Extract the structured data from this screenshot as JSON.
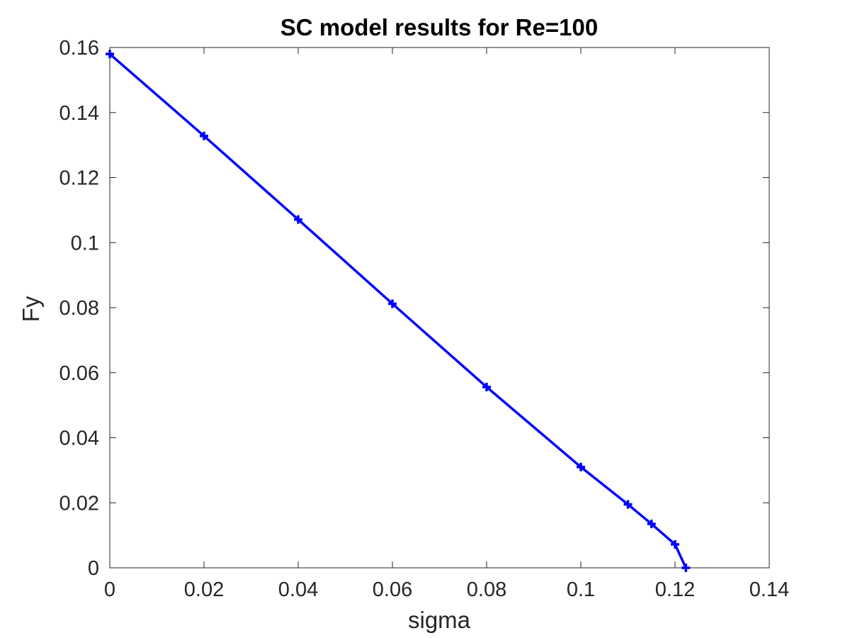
{
  "chart_data": {
    "type": "line",
    "title": "SC model results for Re=100",
    "xlabel": "sigma",
    "ylabel": "Fy",
    "xlim": [
      0,
      0.14
    ],
    "ylim": [
      0,
      0.16
    ],
    "x_ticks": [
      "0",
      "0.02",
      "0.04",
      "0.06",
      "0.08",
      "0.1",
      "0.12",
      "0.14"
    ],
    "y_ticks": [
      "0",
      "0.02",
      "0.04",
      "0.06",
      "0.08",
      "0.1",
      "0.12",
      "0.14",
      "0.16"
    ],
    "grid": false,
    "box": true,
    "series": [
      {
        "color": "#0000ff",
        "marker": "plus",
        "x": [
          0,
          0.02,
          0.04,
          0.06,
          0.08,
          0.1,
          0.11,
          0.115,
          0.12,
          0.1223
        ],
        "y": [
          0.158,
          0.1328,
          0.1071,
          0.0812,
          0.0556,
          0.031,
          0.0195,
          0.0135,
          0.0072,
          0.0
        ]
      }
    ]
  }
}
